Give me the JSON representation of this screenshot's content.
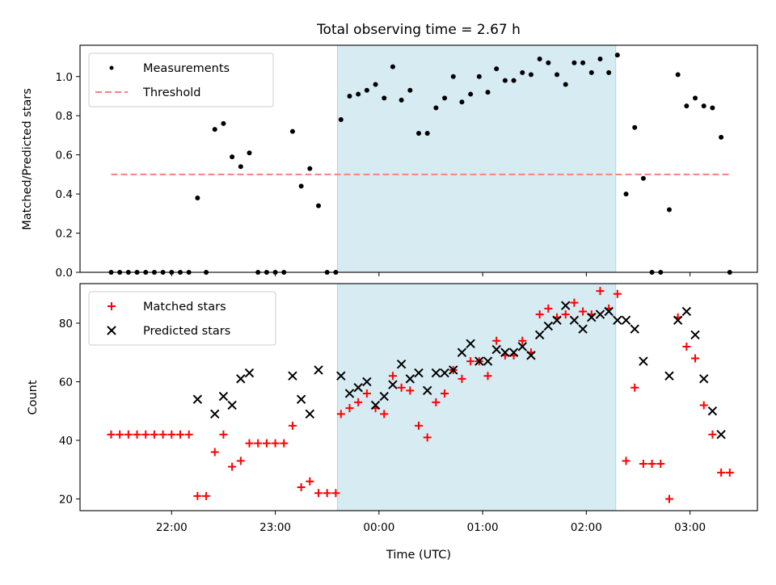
{
  "chart_data": [
    {
      "type": "scatter",
      "title": "Total observing time = 2.67 h",
      "xlabel": "",
      "ylabel": "Matched/Predicted stars",
      "ylim": [
        0,
        1.16
      ],
      "yticks": [
        "0.0",
        "0.2",
        "0.4",
        "0.6",
        "0.8",
        "1.0"
      ],
      "ytick_values": [
        0,
        0.2,
        0.4,
        0.6,
        0.8,
        1.0
      ],
      "legend_position": "top-left",
      "shaded_interval": [
        "23:36",
        "02:17"
      ],
      "series": [
        {
          "name": "Measurements",
          "color": "#000000",
          "marker": "dot",
          "points": [
            [
              "21:25",
              0
            ],
            [
              "21:30",
              0
            ],
            [
              "21:35",
              0
            ],
            [
              "21:40",
              0
            ],
            [
              "21:45",
              0
            ],
            [
              "21:50",
              0
            ],
            [
              "21:55",
              0
            ],
            [
              "22:00",
              0
            ],
            [
              "22:05",
              0
            ],
            [
              "22:10",
              0
            ],
            [
              "22:15",
              0.38
            ],
            [
              "22:20",
              0
            ],
            [
              "22:25",
              0.73
            ],
            [
              "22:30",
              0.76
            ],
            [
              "22:35",
              0.59
            ],
            [
              "22:40",
              0.54
            ],
            [
              "22:45",
              0.61
            ],
            [
              "22:50",
              0
            ],
            [
              "22:55",
              0
            ],
            [
              "23:00",
              0
            ],
            [
              "23:05",
              0
            ],
            [
              "23:10",
              0.72
            ],
            [
              "23:15",
              0.44
            ],
            [
              "23:20",
              0.53
            ],
            [
              "23:25",
              0.34
            ],
            [
              "23:30",
              0
            ],
            [
              "23:35",
              0
            ],
            [
              "23:38",
              0.78
            ],
            [
              "23:43",
              0.9
            ],
            [
              "23:48",
              0.91
            ],
            [
              "23:53",
              0.93
            ],
            [
              "23:58",
              0.96
            ],
            [
              "00:03",
              0.89
            ],
            [
              "00:08",
              1.05
            ],
            [
              "00:13",
              0.88
            ],
            [
              "00:18",
              0.93
            ],
            [
              "00:23",
              0.71
            ],
            [
              "00:28",
              0.71
            ],
            [
              "00:33",
              0.84
            ],
            [
              "00:38",
              0.89
            ],
            [
              "00:43",
              1.0
            ],
            [
              "00:48",
              0.87
            ],
            [
              "00:53",
              0.91
            ],
            [
              "00:58",
              1.0
            ],
            [
              "01:03",
              0.92
            ],
            [
              "01:08",
              1.04
            ],
            [
              "01:13",
              0.98
            ],
            [
              "01:18",
              0.98
            ],
            [
              "01:23",
              1.02
            ],
            [
              "01:28",
              1.01
            ],
            [
              "01:33",
              1.09
            ],
            [
              "01:38",
              1.07
            ],
            [
              "01:43",
              1.01
            ],
            [
              "01:48",
              0.96
            ],
            [
              "01:53",
              1.07
            ],
            [
              "01:58",
              1.07
            ],
            [
              "02:03",
              1.02
            ],
            [
              "02:08",
              1.09
            ],
            [
              "02:13",
              1.02
            ],
            [
              "02:18",
              1.11
            ],
            [
              "02:23",
              0.4
            ],
            [
              "02:28",
              0.74
            ],
            [
              "02:33",
              0.48
            ],
            [
              "02:38",
              0
            ],
            [
              "02:43",
              0
            ],
            [
              "02:48",
              0.32
            ],
            [
              "02:53",
              1.01
            ],
            [
              "02:58",
              0.85
            ],
            [
              "03:03",
              0.89
            ],
            [
              "03:08",
              0.85
            ],
            [
              "03:13",
              0.84
            ],
            [
              "03:18",
              0.69
            ],
            [
              "03:23",
              0
            ]
          ]
        },
        {
          "name": "Threshold",
          "color": "#ff7f7f",
          "marker": "dashed-line",
          "points": [
            [
              "21:25",
              0.5
            ],
            [
              "03:23",
              0.5
            ]
          ]
        }
      ]
    },
    {
      "type": "scatter",
      "xlabel": "Time (UTC)",
      "ylabel": "Count",
      "ylim": [
        16,
        93.5
      ],
      "yticks": [
        "20",
        "40",
        "60",
        "80"
      ],
      "ytick_values": [
        20,
        40,
        60,
        80
      ],
      "xticks": [
        "22:00",
        "23:00",
        "00:00",
        "01:00",
        "02:00",
        "03:00"
      ],
      "legend_position": "top-left",
      "shaded_interval": [
        "23:36",
        "02:17"
      ],
      "series": [
        {
          "name": "Matched stars",
          "color": "#ff0000",
          "marker": "plus",
          "points": [
            [
              "21:25",
              42
            ],
            [
              "21:30",
              42
            ],
            [
              "21:35",
              42
            ],
            [
              "21:40",
              42
            ],
            [
              "21:45",
              42
            ],
            [
              "21:50",
              42
            ],
            [
              "21:55",
              42
            ],
            [
              "22:00",
              42
            ],
            [
              "22:05",
              42
            ],
            [
              "22:10",
              42
            ],
            [
              "22:15",
              21
            ],
            [
              "22:20",
              21
            ],
            [
              "22:25",
              36
            ],
            [
              "22:30",
              42
            ],
            [
              "22:35",
              31
            ],
            [
              "22:40",
              33
            ],
            [
              "22:45",
              39
            ],
            [
              "22:50",
              39
            ],
            [
              "22:55",
              39
            ],
            [
              "23:00",
              39
            ],
            [
              "23:05",
              39
            ],
            [
              "23:10",
              45
            ],
            [
              "23:15",
              24
            ],
            [
              "23:20",
              26
            ],
            [
              "23:25",
              22
            ],
            [
              "23:30",
              22
            ],
            [
              "23:35",
              22
            ],
            [
              "23:38",
              49
            ],
            [
              "23:43",
              51
            ],
            [
              "23:48",
              53
            ],
            [
              "23:53",
              56
            ],
            [
              "23:58",
              51
            ],
            [
              "00:03",
              49
            ],
            [
              "00:08",
              62
            ],
            [
              "00:13",
              58
            ],
            [
              "00:18",
              57
            ],
            [
              "00:23",
              45
            ],
            [
              "00:28",
              41
            ],
            [
              "00:33",
              53
            ],
            [
              "00:38",
              56
            ],
            [
              "00:43",
              64
            ],
            [
              "00:48",
              61
            ],
            [
              "00:53",
              67
            ],
            [
              "00:58",
              67
            ],
            [
              "01:03",
              62
            ],
            [
              "01:08",
              74
            ],
            [
              "01:13",
              69
            ],
            [
              "01:18",
              69
            ],
            [
              "01:23",
              74
            ],
            [
              "01:28",
              70
            ],
            [
              "01:33",
              83
            ],
            [
              "01:38",
              85
            ],
            [
              "01:43",
              82
            ],
            [
              "01:48",
              83
            ],
            [
              "01:53",
              87
            ],
            [
              "01:58",
              84
            ],
            [
              "02:03",
              83
            ],
            [
              "02:08",
              91
            ],
            [
              "02:13",
              85
            ],
            [
              "02:18",
              90
            ],
            [
              "02:23",
              33
            ],
            [
              "02:28",
              58
            ],
            [
              "02:33",
              32
            ],
            [
              "02:38",
              32
            ],
            [
              "02:43",
              32
            ],
            [
              "02:48",
              20
            ],
            [
              "02:53",
              82
            ],
            [
              "02:58",
              72
            ],
            [
              "03:03",
              68
            ],
            [
              "03:08",
              52
            ],
            [
              "03:13",
              42
            ],
            [
              "03:18",
              29
            ],
            [
              "03:23",
              29
            ]
          ]
        },
        {
          "name": "Predicted stars",
          "color": "#000000",
          "marker": "x",
          "points": [
            [
              "22:15",
              54
            ],
            [
              "22:25",
              49
            ],
            [
              "22:30",
              55
            ],
            [
              "22:35",
              52
            ],
            [
              "22:40",
              61
            ],
            [
              "22:45",
              63
            ],
            [
              "23:10",
              62
            ],
            [
              "23:15",
              54
            ],
            [
              "23:20",
              49
            ],
            [
              "23:25",
              64
            ],
            [
              "23:38",
              62
            ],
            [
              "23:43",
              56
            ],
            [
              "23:48",
              58
            ],
            [
              "23:53",
              60
            ],
            [
              "23:58",
              52
            ],
            [
              "00:03",
              55
            ],
            [
              "00:08",
              59
            ],
            [
              "00:13",
              66
            ],
            [
              "00:18",
              61
            ],
            [
              "00:23",
              63
            ],
            [
              "00:28",
              57
            ],
            [
              "00:33",
              63
            ],
            [
              "00:38",
              63
            ],
            [
              "00:43",
              64
            ],
            [
              "00:48",
              70
            ],
            [
              "00:53",
              73
            ],
            [
              "00:58",
              67
            ],
            [
              "01:03",
              67
            ],
            [
              "01:08",
              71
            ],
            [
              "01:13",
              70
            ],
            [
              "01:18",
              70
            ],
            [
              "01:23",
              72
            ],
            [
              "01:28",
              69
            ],
            [
              "01:33",
              76
            ],
            [
              "01:38",
              79
            ],
            [
              "01:43",
              81
            ],
            [
              "01:48",
              86
            ],
            [
              "01:53",
              81
            ],
            [
              "01:58",
              78
            ],
            [
              "02:03",
              82
            ],
            [
              "02:08",
              83
            ],
            [
              "02:13",
              84
            ],
            [
              "02:18",
              81
            ],
            [
              "02:23",
              81
            ],
            [
              "02:28",
              78
            ],
            [
              "02:33",
              67
            ],
            [
              "02:48",
              62
            ],
            [
              "02:53",
              81
            ],
            [
              "02:58",
              84
            ],
            [
              "03:03",
              76
            ],
            [
              "03:08",
              61
            ],
            [
              "03:13",
              50
            ],
            [
              "03:18",
              42
            ]
          ]
        }
      ]
    }
  ]
}
